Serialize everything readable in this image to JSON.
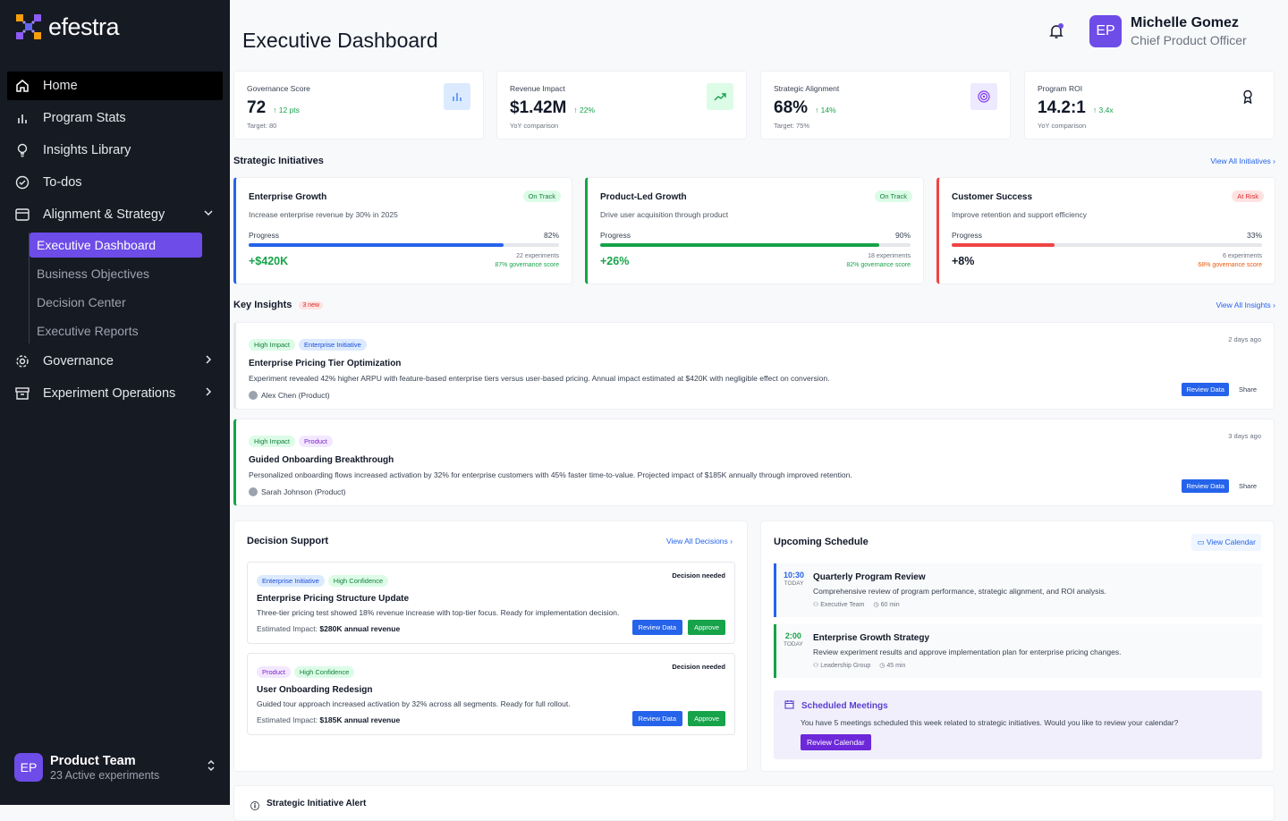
{
  "app": {
    "brand": "efestra"
  },
  "sidebar": {
    "items": [
      {
        "label": "Home",
        "icon": "home-icon"
      },
      {
        "label": "Program Stats",
        "icon": "bar-chart-icon"
      },
      {
        "label": "Insights Library",
        "icon": "lightbulb-icon"
      },
      {
        "label": "To-dos",
        "icon": "check-circle-icon"
      },
      {
        "label": "Alignment & Strategy",
        "icon": "layout-icon"
      },
      {
        "label": "Governance",
        "icon": "gear-icon"
      },
      {
        "label": "Experiment Operations",
        "icon": "archive-icon"
      }
    ],
    "sub_items": [
      {
        "label": "Executive Dashboard"
      },
      {
        "label": "Business Objectives"
      },
      {
        "label": "Decision Center"
      },
      {
        "label": "Executive Reports"
      }
    ],
    "team": {
      "initials": "EP",
      "name": "Product Team",
      "sub": "23 Active experiments"
    }
  },
  "header": {
    "title": "Executive Dashboard",
    "user": {
      "initials": "EP",
      "name": "Michelle Gomez",
      "role": "Chief Product Officer"
    }
  },
  "kpis": [
    {
      "label": "Governance Score",
      "value": "72",
      "delta": "12 pts",
      "sub": "Target: 80",
      "icon": "bar-chart-icon",
      "icon_bg": "#dbeafe",
      "icon_color": "#3b82f6"
    },
    {
      "label": "Revenue Impact",
      "value": "$1.42M",
      "delta": "22%",
      "sub": "YoY comparison",
      "icon": "trending-up-icon",
      "icon_bg": "#dcfce7",
      "icon_color": "#16a34a"
    },
    {
      "label": "Strategic Alignment",
      "value": "68%",
      "delta": "14%",
      "sub": "Target: 75%",
      "icon": "target-icon",
      "icon_bg": "#ede9fe",
      "icon_color": "#7c3aed"
    },
    {
      "label": "Program ROI",
      "value": "14.2:1",
      "delta": "3.4x",
      "sub": "YoY comparison",
      "icon": "award-icon",
      "icon_bg": "#ffffff",
      "icon_color": "#111827"
    }
  ],
  "initiatives": {
    "title": "Strategic Initiatives",
    "link": "View All Initiatives",
    "items": [
      {
        "title": "Enterprise Growth",
        "status": "On Track",
        "desc": "Increase enterprise revenue by 30% in 2025",
        "progress_label": "Progress",
        "progress_text": "82%",
        "progress": 0.82,
        "value": "+$420K",
        "experiments": "22 experiments",
        "governance": "87% governance score",
        "color": "#2563eb",
        "value_color": "#16a34a",
        "gov_color": "#16a34a",
        "badge_bg": "#dcfce7",
        "badge_color": "#15803d"
      },
      {
        "title": "Product-Led Growth",
        "status": "On Track",
        "desc": "Drive user acquisition through product",
        "progress_label": "Progress",
        "progress_text": "90%",
        "progress": 0.9,
        "value": "+26%",
        "experiments": "18 experiments",
        "governance": "82% governance score",
        "color": "#16a34a",
        "value_color": "#16a34a",
        "gov_color": "#16a34a",
        "badge_bg": "#dcfce7",
        "badge_color": "#15803d"
      },
      {
        "title": "Customer Success",
        "status": "At Risk",
        "desc": "Improve retention and support efficiency",
        "progress_label": "Progress",
        "progress_text": "33%",
        "progress": 0.33,
        "value": "+8%",
        "experiments": "6 experiments",
        "governance": "68% governance score",
        "color": "#ef4444",
        "value_color": "#111827",
        "gov_color": "#ea580c",
        "badge_bg": "#fee2e2",
        "badge_color": "#dc2626"
      }
    ]
  },
  "insights": {
    "title": "Key Insights",
    "new_badge": "3 new",
    "link": "View All Insights",
    "items": [
      {
        "tags": [
          "High Impact",
          "Enterprise Initiative"
        ],
        "title": "Enterprise Pricing Tier Optimization",
        "desc": "Experiment revealed 42% higher ARPU with feature-based enterprise tiers versus user-based pricing. Annual impact estimated at $420K with negligible effect on conversion.",
        "author": "Alex Chen (Product)",
        "time": "2 days ago",
        "review": "Review Data",
        "share": "Share"
      },
      {
        "tags": [
          "High Impact",
          "Product"
        ],
        "title": "Guided Onboarding Breakthrough",
        "desc": "Personalized onboarding flows increased activation by 32% for enterprise customers with 45% faster time-to-value. Projected impact of $185K annually through improved retention.",
        "author": "Sarah Johnson (Product)",
        "time": "3 days ago",
        "review": "Review Data",
        "share": "Share"
      }
    ]
  },
  "decisions": {
    "title": "Decision Support",
    "link": "View All Decisions",
    "items": [
      {
        "tags": [
          "Enterprise Initiative",
          "High Confidence"
        ],
        "need": "Decision needed",
        "title": "Enterprise Pricing Structure Update",
        "desc": "Three-tier pricing test showed 18% revenue increase with top-tier focus. Ready for implementation decision.",
        "impact_label": "Estimated Impact:",
        "impact": "$280K annual revenue",
        "review": "Review Data",
        "approve": "Approve"
      },
      {
        "tags": [
          "Product",
          "High Confidence"
        ],
        "need": "Decision needed",
        "title": "User Onboarding Redesign",
        "desc": "Guided tour approach increased activation by 32% across all segments. Ready for full rollout.",
        "impact_label": "Estimated Impact:",
        "impact": "$185K annual revenue",
        "review": "Review Data",
        "approve": "Approve"
      }
    ]
  },
  "schedule": {
    "title": "Upcoming Schedule",
    "link": "View Calendar",
    "items": [
      {
        "time": "10:30",
        "day": "TODAY",
        "title": "Quarterly Program Review",
        "desc": "Comprehensive review of program performance, strategic alignment, and ROI analysis.",
        "team": "Executive Team",
        "duration": "60 min",
        "color": "#2563eb"
      },
      {
        "time": "2:00",
        "day": "TODAY",
        "title": "Enterprise Growth Strategy",
        "desc": "Review experiment results and approve implementation plan for enterprise pricing changes.",
        "team": "Leadership Group",
        "duration": "45 min",
        "color": "#16a34a"
      }
    ],
    "meetings": {
      "title": "Scheduled Meetings",
      "desc": "You have 5 meetings scheduled this week related to strategic initiatives. Would you like to review your calendar?",
      "button": "Review Calendar"
    }
  },
  "alert": {
    "title": "Strategic Initiative Alert"
  }
}
